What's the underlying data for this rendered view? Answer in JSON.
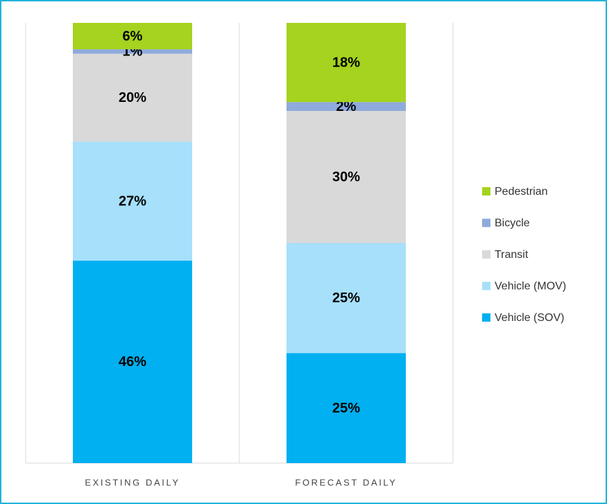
{
  "chart_data": {
    "type": "stacked-bar",
    "categories": [
      "EXISTING DAILY",
      "FORECAST DAILY"
    ],
    "series": [
      {
        "name": "Vehicle (SOV)",
        "color": "#00b0f0",
        "values": [
          46,
          25
        ],
        "value_labels": [
          "46%",
          "25%"
        ]
      },
      {
        "name": "Vehicle (MOV)",
        "color": "#a6e0fa",
        "values": [
          27,
          25
        ],
        "value_labels": [
          "27%",
          "25%"
        ]
      },
      {
        "name": "Transit",
        "color": "#d9d9d9",
        "values": [
          20,
          30
        ],
        "value_labels": [
          "20%",
          "30%"
        ]
      },
      {
        "name": "Bicycle",
        "color": "#8faadc",
        "values": [
          1,
          2
        ],
        "value_labels": [
          "1%",
          "2%"
        ]
      },
      {
        "name": "Pedestrian",
        "color": "#a5d31f",
        "values": [
          6,
          18
        ],
        "value_labels": [
          "6%",
          "18%"
        ]
      }
    ],
    "ylim": [
      0,
      100
    ],
    "legend": "right"
  }
}
